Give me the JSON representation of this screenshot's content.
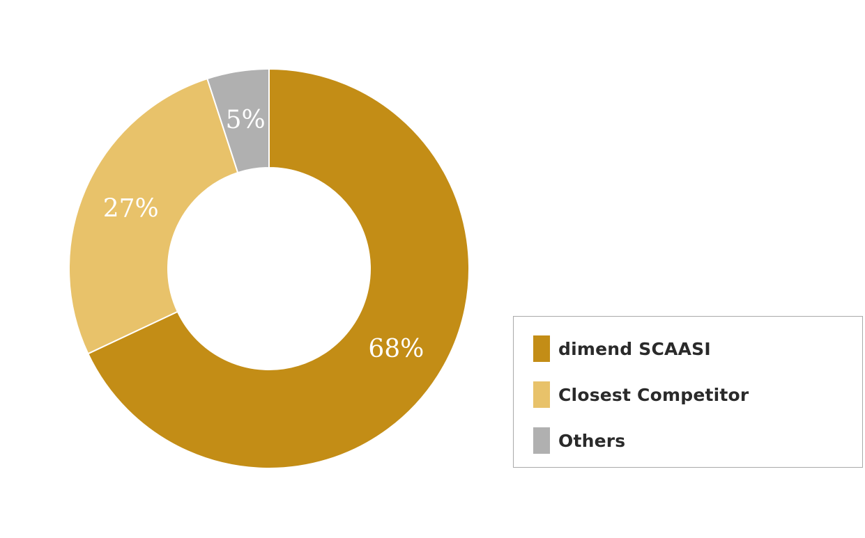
{
  "chart_data": {
    "type": "pie",
    "subtype": "donut",
    "title": "",
    "categories": [
      "dimend SCAASI",
      "Closest Competitor",
      "Others"
    ],
    "values": [
      68,
      27,
      5
    ],
    "labels": [
      "68%",
      "27%",
      "5%"
    ],
    "colors": [
      "#C38D16",
      "#E8C26A",
      "#B0B0B0"
    ],
    "legend_position": "bottom-right",
    "start_angle": "12 o'clock, clockwise"
  },
  "legend": {
    "items": [
      {
        "label": "dimend SCAASI",
        "color": "#C38D16"
      },
      {
        "label": "Closest Competitor",
        "color": "#E8C26A"
      },
      {
        "label": "Others",
        "color": "#B0B0B0"
      }
    ]
  }
}
